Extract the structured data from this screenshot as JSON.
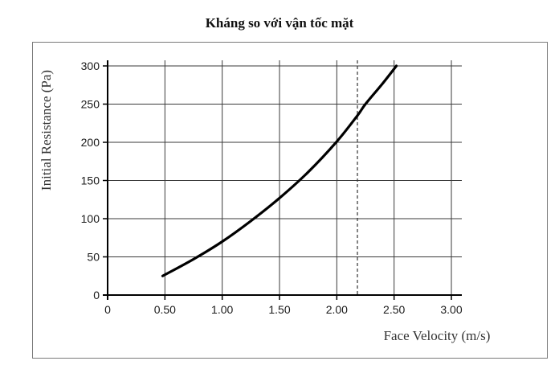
{
  "title": "Kháng so với vận tốc mặt",
  "chart_data": {
    "type": "line",
    "title": "Kháng so với vận tốc mặt",
    "xlabel": "Face Velocity (m/s)",
    "ylabel": "Initial Resistance (Pa)",
    "xlim": [
      0,
      3.0
    ],
    "ylim": [
      0,
      300
    ],
    "x_ticks": [
      0,
      0.5,
      1.0,
      1.5,
      2.0,
      2.5,
      3.0
    ],
    "x_tick_labels": [
      "0",
      "0.50",
      "1.00",
      "1.50",
      "2.00",
      "2.50",
      "3.00"
    ],
    "y_ticks": [
      0,
      50,
      100,
      150,
      200,
      250,
      300
    ],
    "y_tick_labels": [
      "0",
      "50",
      "100",
      "150",
      "200",
      "250",
      "300"
    ],
    "grid": true,
    "reference_line_x": 2.18,
    "series": [
      {
        "x": [
          0.48,
          0.75,
          1.0,
          1.25,
          1.5,
          1.75,
          2.0,
          2.18,
          2.25,
          2.4,
          2.52
        ],
        "y": [
          25,
          47,
          70,
          97,
          127,
          161,
          201,
          235,
          250,
          277,
          300
        ]
      }
    ]
  }
}
